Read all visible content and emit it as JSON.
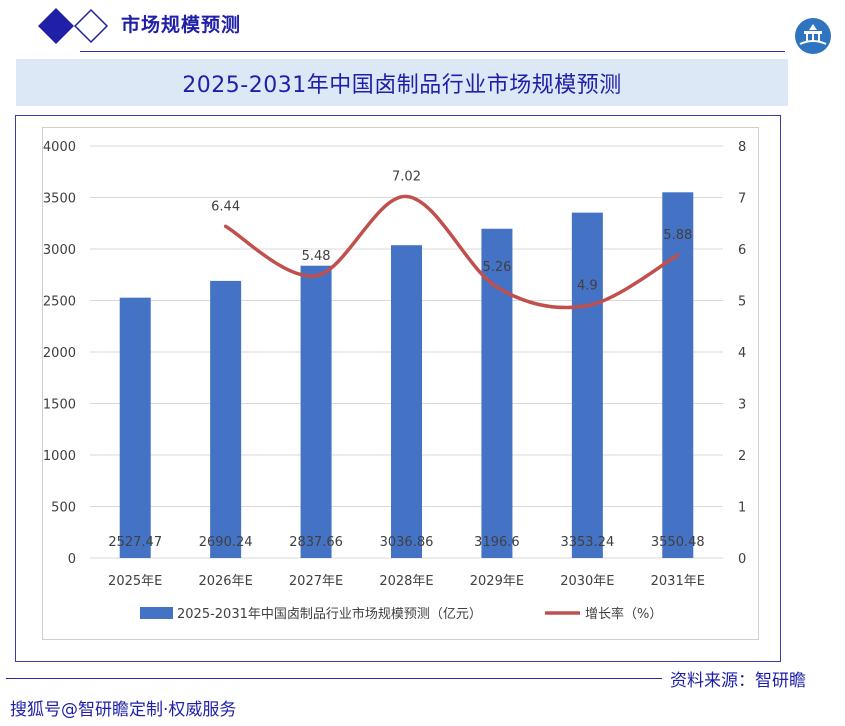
{
  "header": {
    "section_title": "市场规模预测",
    "logo_icon": "diamond-logo-icon",
    "emblem_icon": "bridge-emblem-icon",
    "accent_color": "#1f1fa8"
  },
  "main_title": "2025-2031年中国卤制品行业市场规模预测",
  "chart_data": {
    "type": "bar",
    "categories": [
      "2025年E",
      "2026年E",
      "2027年E",
      "2028年E",
      "2029年E",
      "2030年E",
      "2031年E"
    ],
    "series": [
      {
        "name": "2025-2031年中国卤制品行业市场规模预测（亿元）",
        "type": "bar",
        "axis": "left",
        "color": "#4472c4",
        "values": [
          2527.47,
          2690.24,
          2837.66,
          3036.86,
          3196.6,
          3353.24,
          3550.48
        ],
        "labels": [
          "2527.47",
          "2690.24",
          "2837.66",
          "3036.86",
          "3196.6",
          "3353.24",
          "3550.48"
        ]
      },
      {
        "name": "增长率（%）",
        "type": "line",
        "axis": "right",
        "color": "#c0504d",
        "values": [
          null,
          6.44,
          5.48,
          7.02,
          5.26,
          4.9,
          5.88
        ],
        "labels": [
          "",
          "6.44",
          "5.48",
          "7.02",
          "5.26",
          "4.9",
          "5.88"
        ]
      }
    ],
    "y_left": {
      "min": 0,
      "max": 4000,
      "ticks": [
        0,
        500,
        1000,
        1500,
        2000,
        2500,
        3000,
        3500,
        4000
      ]
    },
    "y_right": {
      "min": 0,
      "max": 8,
      "ticks": [
        0,
        1,
        2,
        3,
        4,
        5,
        6,
        7,
        8
      ]
    },
    "grid": true,
    "legend_position": "bottom"
  },
  "footer": {
    "source": "资料来源：智研瞻",
    "tagline": "搜狐号@智研瞻定制·权威服务"
  }
}
